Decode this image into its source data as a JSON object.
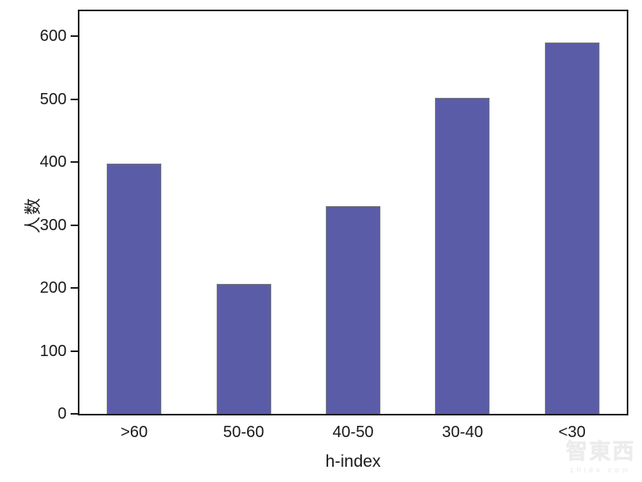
{
  "chart_data": {
    "type": "bar",
    "categories": [
      ">60",
      "50-60",
      "40-50",
      "30-40",
      "<30"
    ],
    "values": [
      398,
      207,
      330,
      502,
      590
    ],
    "title": "",
    "xlabel": "h-index",
    "ylabel": "人数",
    "ylim": [
      0,
      640
    ],
    "yticks": [
      0,
      100,
      200,
      300,
      400,
      500,
      600
    ],
    "grid": false,
    "legend": null,
    "bar_color": "#5a5ca8",
    "bar_edge_color": "#777a7d",
    "axis_color": "#1c1c1c"
  },
  "watermark": {
    "logo": "智東西",
    "site": "zhidx.com"
  }
}
